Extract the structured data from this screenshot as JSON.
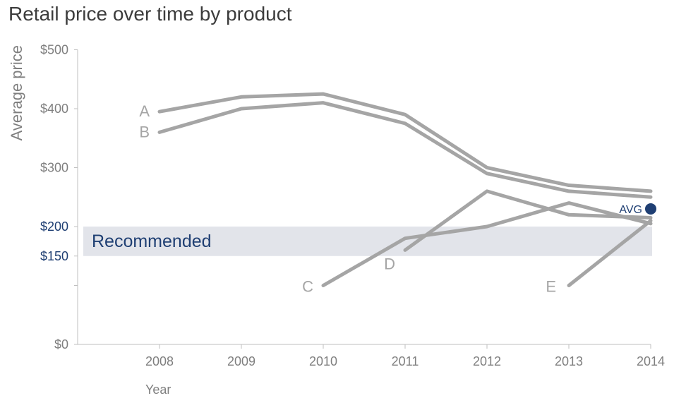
{
  "chart_data": {
    "type": "line",
    "title": "Retail price over time by product",
    "xlabel": "Year",
    "ylabel": "Average price",
    "x": [
      "2008",
      "2009",
      "2010",
      "2011",
      "2012",
      "2013",
      "2014"
    ],
    "ylim": [
      0,
      500
    ],
    "y_ticks": [
      {
        "value": 500,
        "label": "$500",
        "highlight": false
      },
      {
        "value": 400,
        "label": "$400",
        "highlight": false
      },
      {
        "value": 300,
        "label": "$300",
        "highlight": false
      },
      {
        "value": 200,
        "label": "$200",
        "highlight": true
      },
      {
        "value": 150,
        "label": "$150",
        "highlight": true
      },
      {
        "value": 0,
        "label": "$0",
        "highlight": false
      }
    ],
    "minor_y_ticks": [
      100
    ],
    "band": {
      "from": 150,
      "to": 200,
      "label": "Recommended",
      "fill": "#e2e4ea",
      "text_color": "#1f3f73"
    },
    "series": [
      {
        "name": "A",
        "values": [
          395,
          420,
          425,
          390,
          300,
          270,
          260
        ]
      },
      {
        "name": "B",
        "values": [
          360,
          400,
          410,
          375,
          290,
          260,
          250
        ]
      },
      {
        "name": "C",
        "values": [
          null,
          null,
          100,
          180,
          200,
          240,
          205
        ]
      },
      {
        "name": "D",
        "values": [
          null,
          null,
          null,
          160,
          260,
          220,
          215
        ]
      },
      {
        "name": "E",
        "values": [
          null,
          null,
          null,
          null,
          null,
          100,
          210
        ]
      }
    ],
    "avg": {
      "label": "AVG",
      "x": "2014",
      "value": 230,
      "color": "#1f3f73"
    },
    "colors": {
      "line": "#a5a5a5",
      "axis": "#bfbfbf",
      "text": "#7f7f7f",
      "title": "#3c3c3c",
      "highlight": "#1f3f73"
    }
  }
}
